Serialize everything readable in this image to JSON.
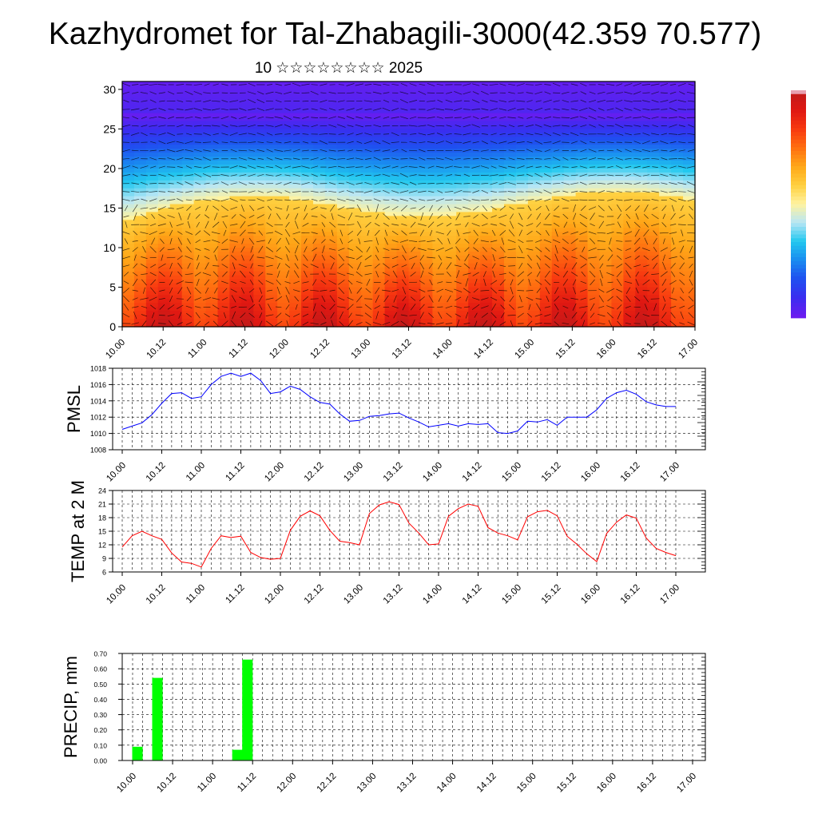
{
  "title": "Kazhydromet for Tal-Zhabagili-3000(42.359 70.577)",
  "subtitle": "10 ☆☆☆☆☆☆☆☆ 2025",
  "time_labels": [
    "10.00",
    "10.12",
    "11.00",
    "11.12",
    "12.00",
    "12.12",
    "13.00",
    "13.12",
    "14.00",
    "14.12",
    "15.00",
    "15.12",
    "16.00",
    "16.12",
    "17.00"
  ],
  "chart_data": [
    {
      "type": "heatmap",
      "name": "vertical cross-section",
      "y_ticks": [
        0,
        5,
        10,
        15,
        20,
        25,
        30
      ],
      "ylim": [
        0,
        31
      ],
      "colormap": [
        "#6a1cf0",
        "#3a2df0",
        "#1f50f0",
        "#1a8cf0",
        "#22c8ef",
        "#b8e6f5",
        "#fff3a0",
        "#ffd040",
        "#ffa818",
        "#ff7010",
        "#f83a10",
        "#e01812",
        "#c01a1a",
        "#e8a0b0"
      ],
      "vectors": "wind barbs/arrows overlay"
    },
    {
      "type": "line",
      "ylabel": "PMSL",
      "ylim": [
        1008,
        1018
      ],
      "y_ticks": [
        "1008",
        "1010",
        "1012",
        "1014",
        "1016",
        "1018"
      ],
      "color": "#0000ff",
      "values": [
        1010.5,
        1010.9,
        1011.3,
        1012.3,
        1013.7,
        1014.9,
        1015.0,
        1014.3,
        1014.5,
        1016.0,
        1017.0,
        1017.4,
        1017.0,
        1017.4,
        1016.5,
        1014.9,
        1015.1,
        1015.8,
        1015.4,
        1014.5,
        1013.8,
        1013.6,
        1012.4,
        1011.5,
        1011.6,
        1012.1,
        1012.2,
        1012.4,
        1012.5,
        1011.9,
        1011.4,
        1010.8,
        1011.0,
        1011.2,
        1010.9,
        1011.2,
        1011.1,
        1011.2,
        1010.1,
        1010.0,
        1010.3,
        1011.5,
        1011.4,
        1011.7,
        1011.0,
        1012.0,
        1012.0,
        1012.0,
        1012.9,
        1014.3,
        1015.0,
        1015.3,
        1014.8,
        1013.9,
        1013.5,
        1013.3,
        1013.3
      ],
      "grid": true
    },
    {
      "type": "line",
      "ylabel": "TEMP at 2 M",
      "ylim": [
        6,
        24
      ],
      "y_ticks": [
        "6",
        "9",
        "12",
        "15",
        "18",
        "21",
        "24"
      ],
      "color": "#ff0000",
      "values": [
        11.5,
        14.0,
        15.0,
        14.0,
        13.2,
        10.2,
        8.2,
        7.9,
        7.1,
        11.2,
        14.0,
        13.6,
        13.9,
        10.3,
        9.2,
        8.8,
        9.0,
        15.2,
        18.3,
        19.5,
        18.4,
        15.2,
        12.8,
        12.5,
        12.0,
        18.9,
        20.8,
        21.5,
        20.9,
        16.8,
        14.6,
        12.0,
        12.2,
        18.3,
        20.0,
        21.0,
        20.5,
        15.8,
        14.6,
        14.0,
        13.1,
        18.2,
        19.3,
        19.6,
        18.4,
        13.9,
        12.1,
        10.0,
        8.3,
        14.5,
        17.0,
        18.6,
        17.9,
        13.5,
        11.2,
        10.3,
        9.6
      ],
      "grid": true
    },
    {
      "type": "bar",
      "ylabel": "PRECIP, mm",
      "ylim": [
        0,
        0.7
      ],
      "y_ticks": [
        "0.00",
        "0.10",
        "0.20",
        "0.30",
        "0.40",
        "0.50",
        "0.60",
        "0.70"
      ],
      "color": "#00ff00",
      "values": [
        0.09,
        0,
        0.54,
        0,
        0,
        0,
        0,
        0,
        0,
        0,
        0.07,
        0.66,
        0,
        0,
        0,
        0,
        0,
        0,
        0,
        0,
        0,
        0,
        0,
        0,
        0,
        0,
        0,
        0,
        0,
        0,
        0,
        0,
        0,
        0,
        0,
        0,
        0,
        0,
        0,
        0,
        0,
        0,
        0,
        0,
        0,
        0,
        0,
        0,
        0,
        0,
        0,
        0,
        0,
        0,
        0,
        0,
        0
      ],
      "grid": true
    }
  ]
}
